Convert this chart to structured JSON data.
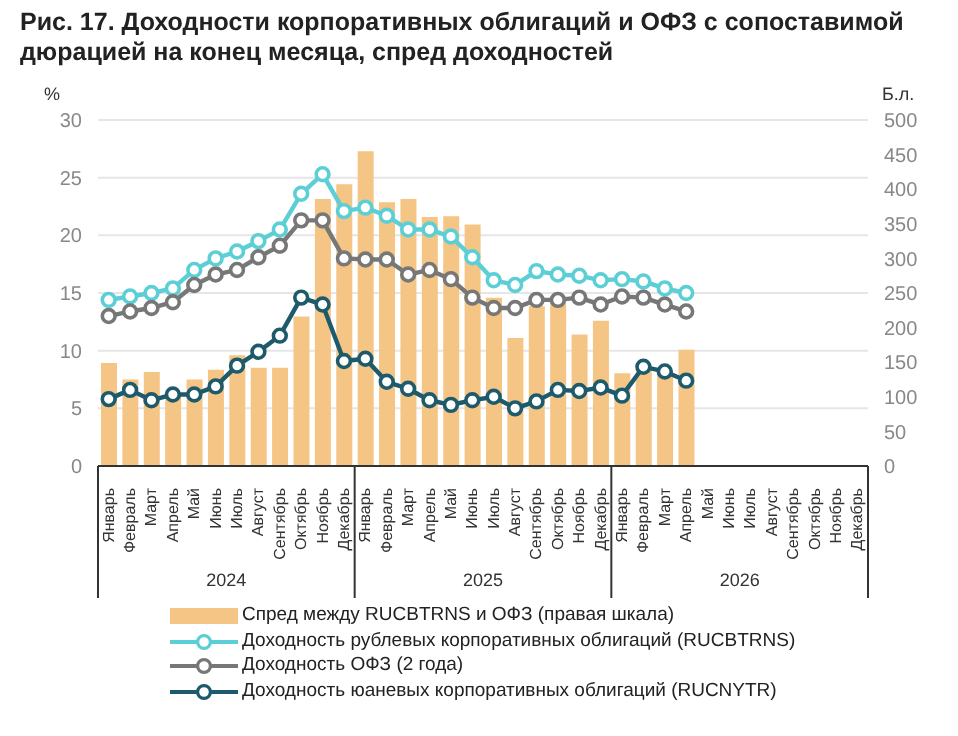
{
  "chart_data": {
    "type": "bar",
    "title": "Рис. 17. Доходности корпоративных облигаций и ОФЗ с сопоставимой дюрацией на конец месяца, спред доходностей",
    "ylabel": "%",
    "y2label": "Б.л.",
    "categories": [
      "Январь",
      "Февраль",
      "Март",
      "Апрель",
      "Май",
      "Июнь",
      "Июль",
      "Август",
      "Сентябрь",
      "Октябрь",
      "Ноябрь",
      "Декабрь",
      "Январь",
      "Февраль",
      "Март",
      "Апрель",
      "Май",
      "Июнь",
      "Июль",
      "Август",
      "Сентябрь",
      "Октябрь",
      "Ноябрь",
      "Декабрь",
      "Январь",
      "Февраль",
      "Март",
      "Апрель",
      "Май",
      "Июнь",
      "Июль",
      "Август",
      "Сентябрь",
      "Октябрь",
      "Ноябрь",
      "Декабрь"
    ],
    "annotations": [
      "2024",
      "2025",
      "2026"
    ],
    "series": [
      {
        "axis": "y2",
        "name": "Спред между RUCBTRNS и ОФЗ (правая шкала)",
        "color": "#f5c585",
        "values": [
          149,
          125,
          136,
          105,
          125,
          139,
          160,
          142,
          142,
          216,
          386,
          407,
          455,
          381,
          386,
          360,
          361,
          349,
          243,
          185,
          231,
          241,
          190,
          210,
          134,
          140,
          134,
          168,
          null,
          null,
          null,
          null,
          null,
          null,
          null,
          null
        ]
      },
      {
        "type": "line",
        "name": "Доходность рублевых корпоративных облигаций (RUCBTRNS)",
        "color": "#5ccfd6",
        "values": [
          14.4,
          14.7,
          15.0,
          15.4,
          17.0,
          18.0,
          18.6,
          19.5,
          20.5,
          23.6,
          25.3,
          22.1,
          22.4,
          21.7,
          20.5,
          20.5,
          19.9,
          18.1,
          16.1,
          15.7,
          16.9,
          16.6,
          16.5,
          16.1,
          16.2,
          16.0,
          15.4,
          15.0,
          null,
          null,
          null,
          null,
          null,
          null,
          null,
          null
        ]
      },
      {
        "type": "line",
        "name": "Доходность ОФЗ (2 года)",
        "color": "#777777",
        "values": [
          13.0,
          13.4,
          13.7,
          14.2,
          15.7,
          16.6,
          17.0,
          18.1,
          19.1,
          21.3,
          21.3,
          18.0,
          17.9,
          17.9,
          16.6,
          17.0,
          16.2,
          14.6,
          13.7,
          13.7,
          14.4,
          14.4,
          14.6,
          14.0,
          14.7,
          14.6,
          14.0,
          13.4,
          null,
          null,
          null,
          null,
          null,
          null,
          null,
          null
        ]
      },
      {
        "type": "line",
        "name": "Доходность юаневых корпоративных облигаций (RUCNYTR)",
        "color": "#1d5a6c",
        "values": [
          5.8,
          6.6,
          5.7,
          6.2,
          6.2,
          6.9,
          8.7,
          9.9,
          11.3,
          14.6,
          14.0,
          9.1,
          9.3,
          7.3,
          6.7,
          5.7,
          5.3,
          5.7,
          6.0,
          5.0,
          5.6,
          6.6,
          6.5,
          6.8,
          6.1,
          8.6,
          8.2,
          7.4,
          null,
          null,
          null,
          null,
          null,
          null,
          null,
          null
        ]
      }
    ],
    "ylim": [
      0,
      30
    ],
    "yticks": [
      0,
      5,
      10,
      15,
      20,
      25,
      30
    ],
    "y2lim": [
      0,
      500
    ],
    "y2ticks": [
      0,
      50,
      100,
      150,
      200,
      250,
      300,
      350,
      400,
      450,
      500
    ],
    "grid": "y",
    "legend": "bottom",
    "marker": "circle",
    "line_style": "solid"
  }
}
